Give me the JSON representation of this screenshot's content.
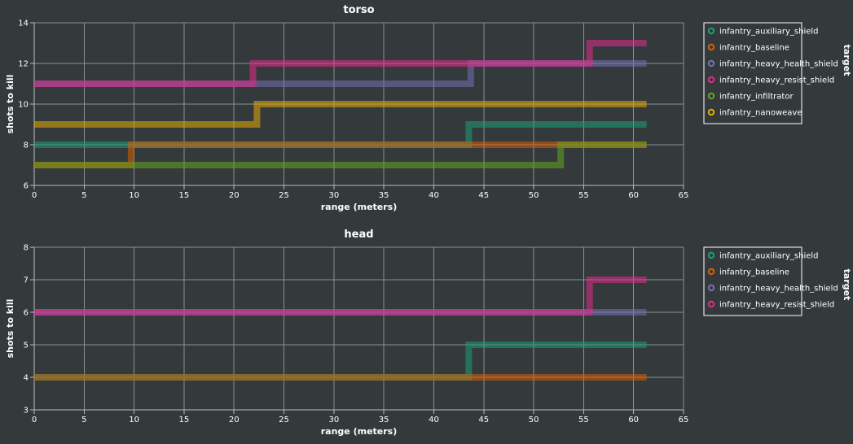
{
  "chart_data": [
    {
      "type": "line",
      "title": "torso",
      "xlabel": "range (meters)",
      "ylabel": "shots to kill",
      "legend_title": "target",
      "legend_position": "right",
      "grid": true,
      "xlim": [
        0,
        65
      ],
      "ylim": [
        6,
        14
      ],
      "x_ticks": [
        0,
        5,
        10,
        15,
        20,
        25,
        30,
        35,
        40,
        45,
        50,
        55,
        60,
        65
      ],
      "y_ticks": [
        6,
        8,
        10,
        12,
        14
      ],
      "series": [
        {
          "name": "infantry_auxiliary_shield",
          "color": "#1b9e77",
          "points": [
            [
              0,
              8
            ],
            [
              43.5,
              8
            ],
            [
              43.5,
              9
            ],
            [
              61.3,
              9
            ]
          ]
        },
        {
          "name": "infantry_baseline",
          "color": "#d95f02",
          "points": [
            [
              0,
              7
            ],
            [
              9.7,
              7
            ],
            [
              9.7,
              8
            ],
            [
              52.3,
              8
            ],
            [
              52.3,
              8
            ],
            [
              61.3,
              8
            ]
          ]
        },
        {
          "name": "infantry_heavy_health_shield",
          "color": "#7570b3",
          "points": [
            [
              0,
              11
            ],
            [
              22.3,
              11
            ],
            [
              22.3,
              11
            ],
            [
              43.7,
              11
            ],
            [
              43.7,
              12
            ],
            [
              56,
              12
            ],
            [
              56,
              12
            ],
            [
              61.3,
              12
            ]
          ]
        },
        {
          "name": "infantry_heavy_resist_shield",
          "color": "#e7298a",
          "points": [
            [
              0,
              11
            ],
            [
              21.9,
              11
            ],
            [
              21.9,
              12
            ],
            [
              55.6,
              12
            ],
            [
              55.6,
              13
            ],
            [
              61.3,
              13
            ]
          ]
        },
        {
          "name": "infantry_infiltrator",
          "color": "#66a61e",
          "points": [
            [
              0,
              7
            ],
            [
              10,
              7
            ],
            [
              10,
              7
            ],
            [
              52.7,
              7
            ],
            [
              52.7,
              8
            ],
            [
              61.3,
              8
            ]
          ]
        },
        {
          "name": "infantry_nanoweave",
          "color": "#e6ab02",
          "points": [
            [
              0,
              9
            ],
            [
              22.3,
              9
            ],
            [
              22.3,
              10
            ],
            [
              61.3,
              10
            ]
          ]
        }
      ]
    },
    {
      "type": "line",
      "title": "head",
      "xlabel": "range (meters)",
      "ylabel": "shots to kill",
      "legend_title": "target",
      "legend_position": "right",
      "grid": true,
      "xlim": [
        0,
        65
      ],
      "ylim": [
        3,
        8
      ],
      "x_ticks": [
        0,
        5,
        10,
        15,
        20,
        25,
        30,
        35,
        40,
        45,
        50,
        55,
        60,
        65
      ],
      "y_ticks": [
        3,
        4,
        5,
        6,
        7,
        8
      ],
      "series": [
        {
          "name": "infantry_auxiliary_shield",
          "color": "#1b9e77",
          "points": [
            [
              0,
              4
            ],
            [
              43.5,
              4
            ],
            [
              43.5,
              5
            ],
            [
              61.3,
              5
            ]
          ]
        },
        {
          "name": "infantry_baseline",
          "color": "#d95f02",
          "points": [
            [
              0,
              4
            ],
            [
              43.7,
              4
            ],
            [
              43.7,
              4
            ],
            [
              61.3,
              4
            ]
          ]
        },
        {
          "name": "infantry_heavy_health_shield",
          "color": "#7570b3",
          "points": [
            [
              0,
              6
            ],
            [
              56,
              6
            ],
            [
              56,
              6
            ],
            [
              61.3,
              6
            ]
          ]
        },
        {
          "name": "infantry_heavy_resist_shield",
          "color": "#e7298a",
          "points": [
            [
              0,
              6
            ],
            [
              55.6,
              6
            ],
            [
              55.6,
              7
            ],
            [
              61.3,
              7
            ]
          ]
        }
      ]
    }
  ]
}
